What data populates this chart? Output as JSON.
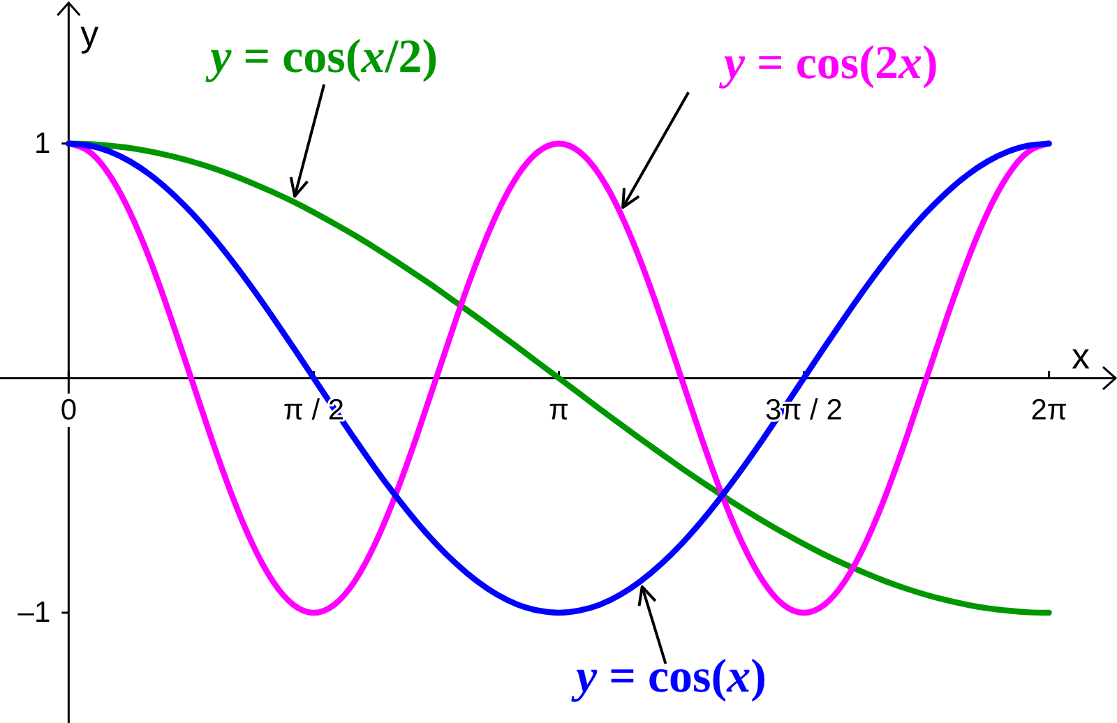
{
  "chart_data": {
    "type": "line",
    "xlabel": "x",
    "ylabel": "y",
    "x": [
      0,
      0.131,
      0.262,
      0.393,
      0.524,
      0.654,
      0.785,
      0.916,
      1.047,
      1.178,
      1.309,
      1.44,
      1.571,
      1.702,
      1.833,
      1.963,
      2.094,
      2.225,
      2.356,
      2.487,
      2.618,
      2.749,
      2.88,
      3.011,
      3.142,
      3.272,
      3.403,
      3.534,
      3.665,
      3.796,
      3.927,
      4.058,
      4.189,
      4.32,
      4.451,
      4.581,
      4.712,
      4.843,
      4.974,
      5.105,
      5.236,
      5.367,
      5.498,
      5.629,
      5.76,
      5.89,
      6.021,
      6.152,
      6.283
    ],
    "series": [
      {
        "name": "y = cos(x/2)",
        "color": "#009600",
        "values": [
          1,
          0.998,
          0.991,
          0.981,
          0.966,
          0.947,
          0.924,
          0.897,
          0.866,
          0.831,
          0.793,
          0.752,
          0.707,
          0.659,
          0.609,
          0.556,
          0.5,
          0.442,
          0.383,
          0.321,
          0.259,
          0.195,
          0.131,
          0.065,
          0,
          -0.065,
          -0.131,
          -0.195,
          -0.259,
          -0.321,
          -0.383,
          -0.442,
          -0.5,
          -0.556,
          -0.609,
          -0.659,
          -0.707,
          -0.752,
          -0.793,
          -0.831,
          -0.866,
          -0.897,
          -0.924,
          -0.947,
          -0.966,
          -0.981,
          -0.991,
          -0.998,
          -1
        ]
      },
      {
        "name": "y = cos(2x)",
        "color": "#ff00ff",
        "values": [
          1,
          0.966,
          0.866,
          0.707,
          0.5,
          0.259,
          0,
          -0.259,
          -0.5,
          -0.707,
          -0.866,
          -0.966,
          -1,
          -0.966,
          -0.866,
          -0.707,
          -0.5,
          -0.259,
          0,
          0.259,
          0.5,
          0.707,
          0.866,
          0.966,
          1,
          0.966,
          0.866,
          0.707,
          0.5,
          0.259,
          0,
          -0.259,
          -0.5,
          -0.707,
          -0.866,
          -0.966,
          -1,
          -0.966,
          -0.866,
          -0.707,
          -0.5,
          -0.259,
          0,
          0.259,
          0.5,
          0.707,
          0.866,
          0.966,
          1
        ]
      },
      {
        "name": "y = cos(x)",
        "color": "#0000ff",
        "values": [
          1,
          0.991,
          0.966,
          0.924,
          0.866,
          0.793,
          0.707,
          0.609,
          0.5,
          0.383,
          0.259,
          0.131,
          0,
          -0.131,
          -0.259,
          -0.383,
          -0.5,
          -0.609,
          -0.707,
          -0.793,
          -0.866,
          -0.924,
          -0.966,
          -0.991,
          -1,
          -0.991,
          -0.966,
          -0.924,
          -0.866,
          -0.793,
          -0.707,
          -0.609,
          -0.5,
          -0.383,
          -0.259,
          -0.131,
          0,
          0.131,
          0.259,
          0.383,
          0.5,
          0.609,
          0.707,
          0.793,
          0.866,
          0.924,
          0.966,
          0.991,
          1
        ]
      }
    ],
    "xlim": [
      -0.44,
      6.71
    ],
    "ylim": [
      -1.47,
      1.6
    ],
    "xticks": [
      0,
      {
        "value": 1.571,
        "label": "π / 2"
      },
      {
        "value": 3.142,
        "label": "π"
      },
      {
        "value": 4.712,
        "label": "3π / 2"
      },
      {
        "value": 6.283,
        "label": "2π"
      }
    ],
    "yticks": [
      {
        "value": -1,
        "label": "–1"
      },
      1
    ]
  }
}
